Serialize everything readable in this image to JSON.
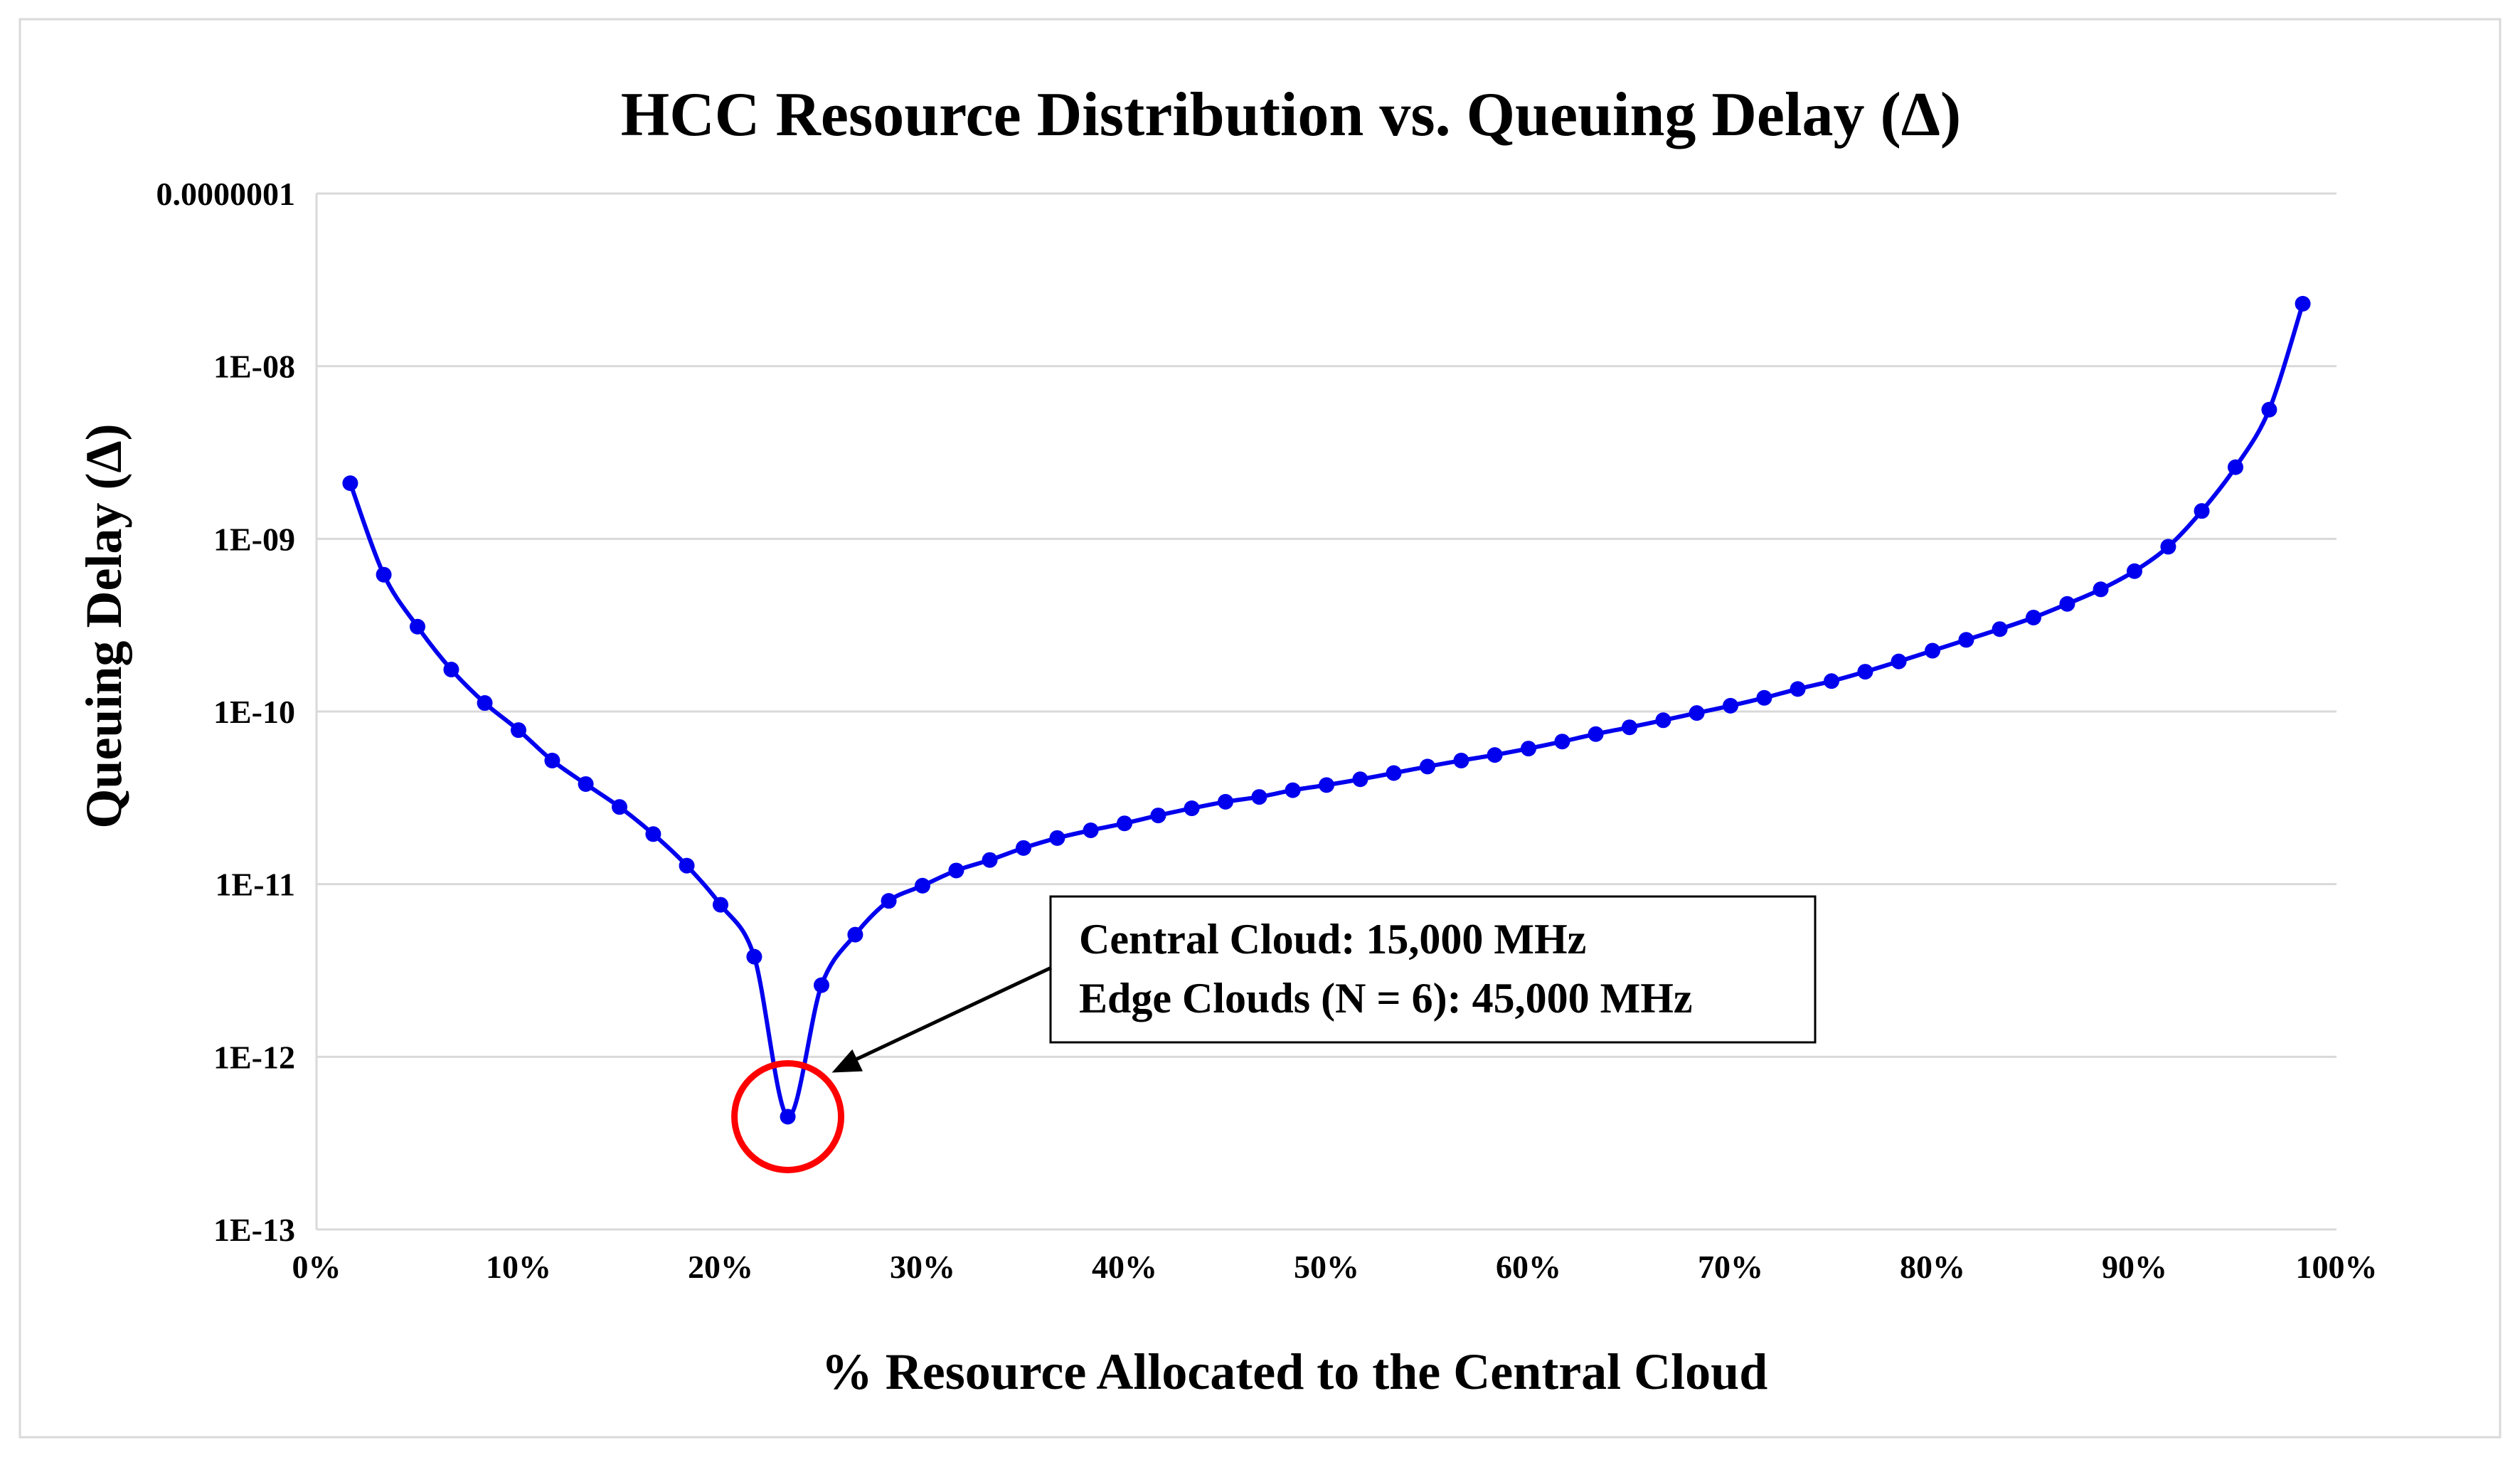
{
  "chart_data": {
    "type": "line",
    "title": "HCC Resource Distribution vs. Queuing Delay (Δ)",
    "xlabel": "% Resource Allocated to the Central Cloud",
    "ylabel": "Queuing Delay (Δ)",
    "xlim": [
      0,
      100
    ],
    "ylim": [
      1e-13,
      1e-07
    ],
    "yscale": "log",
    "grid": true,
    "x_ticks": [
      "0%",
      "10%",
      "20%",
      "30%",
      "40%",
      "50%",
      "60%",
      "70%",
      "80%",
      "90%",
      "100%"
    ],
    "y_ticks": [
      "1E-13",
      "1E-12",
      "1E-11",
      "1E-10",
      "1E-09",
      "1E-08",
      "0.0000001"
    ],
    "series": [
      {
        "x": [
          1.67,
          3.33,
          5.0,
          6.67,
          8.33,
          10.0,
          11.67,
          13.33,
          15.0,
          16.67,
          18.33,
          20.0,
          21.67,
          23.33,
          25.0,
          26.67,
          28.33,
          30.0,
          31.67,
          33.33,
          35.0,
          36.67,
          38.33,
          40.0,
          41.67,
          43.33,
          45.0,
          46.67,
          48.33,
          50.0,
          51.67,
          53.33,
          55.0,
          56.67,
          58.33,
          60.0,
          61.67,
          63.33,
          65.0,
          66.67,
          68.33,
          70.0,
          71.67,
          73.33,
          75.0,
          76.67,
          78.33,
          80.0,
          81.67,
          83.33,
          85.0,
          86.67,
          88.33,
          90.0,
          91.67,
          93.33,
          95.0,
          96.67,
          98.33
        ],
        "y": [
          2.1e-09,
          6.2e-10,
          3.1e-10,
          1.75e-10,
          1.12e-10,
          7.8e-11,
          5.2e-11,
          3.8e-11,
          2.8e-11,
          1.95e-11,
          1.28e-11,
          7.6e-12,
          3.8e-12,
          4.5e-13,
          2.6e-12,
          5.1e-12,
          8e-12,
          9.8e-12,
          1.2e-11,
          1.38e-11,
          1.62e-11,
          1.85e-11,
          2.05e-11,
          2.25e-11,
          2.5e-11,
          2.75e-11,
          3e-11,
          3.2e-11,
          3.5e-11,
          3.75e-11,
          4.05e-11,
          4.4e-11,
          4.8e-11,
          5.2e-11,
          5.6e-11,
          6.1e-11,
          6.7e-11,
          7.4e-11,
          8.1e-11,
          8.9e-11,
          9.8e-11,
          1.08e-10,
          1.2e-10,
          1.35e-10,
          1.5e-10,
          1.7e-10,
          1.95e-10,
          2.25e-10,
          2.6e-10,
          3e-10,
          3.5e-10,
          4.2e-10,
          5.1e-10,
          6.5e-10,
          9e-10,
          1.45e-09,
          2.6e-09,
          5.6e-09,
          2.3e-08
        ]
      }
    ],
    "line_color": "#0000ee",
    "highlight_color": "#ff0000",
    "annotation": {
      "lines": [
        "Central Cloud: 15,000 MHz",
        "Edge Clouds (N = 6): 45,000 MHz"
      ],
      "target_index": 13
    }
  }
}
